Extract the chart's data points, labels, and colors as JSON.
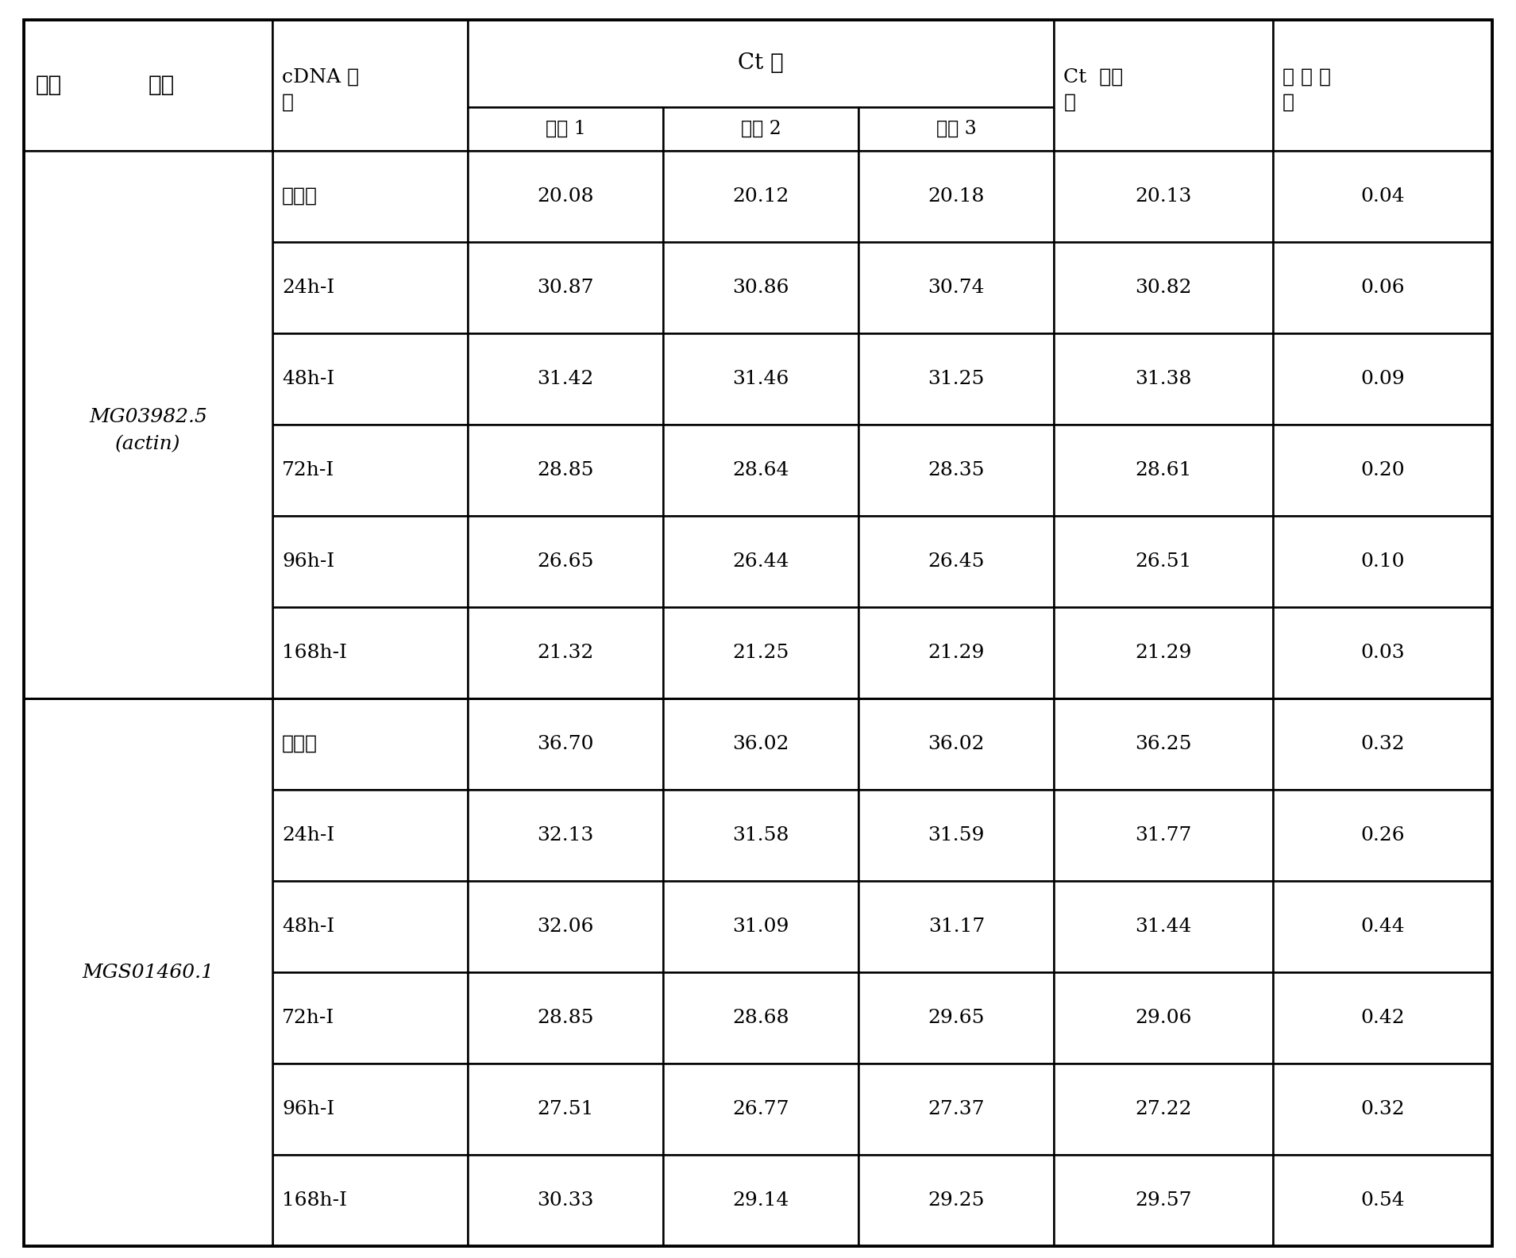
{
  "col_headers_row1": [
    "基因",
    "cDNA 样\n品",
    "Ct 值",
    "",
    "",
    "Ct  平均\n值",
    "标 准 偏\n差"
  ],
  "col_headers_row2": [
    "",
    "",
    "重复 1",
    "重复 2",
    "重复 3",
    "",
    ""
  ],
  "gene1_label": "MG03982.5\n\n(actin)",
  "gene2_label": "MGS01460.1",
  "rows": [
    [
      "菌丝体",
      "20.08",
      "20.12",
      "20.18",
      "20.13",
      "0.04"
    ],
    [
      "24h-I",
      "30.87",
      "30.86",
      "30.74",
      "30.82",
      "0.06"
    ],
    [
      "48h-I",
      "31.42",
      "31.46",
      "31.25",
      "31.38",
      "0.09"
    ],
    [
      "72h-I",
      "28.85",
      "28.64",
      "28.35",
      "28.61",
      "0.20"
    ],
    [
      "96h-I",
      "26.65",
      "26.44",
      "26.45",
      "26.51",
      "0.10"
    ],
    [
      "168h-I",
      "21.32",
      "21.25",
      "21.29",
      "21.29",
      "0.03"
    ],
    [
      "菌丝体",
      "36.70",
      "36.02",
      "36.02",
      "36.25",
      "0.32"
    ],
    [
      "24h-I",
      "32.13",
      "31.58",
      "31.59",
      "31.77",
      "0.26"
    ],
    [
      "48h-I",
      "32.06",
      "31.09",
      "31.17",
      "31.44",
      "0.44"
    ],
    [
      "72h-I",
      "28.85",
      "28.68",
      "29.65",
      "29.06",
      "0.42"
    ],
    [
      "96h-I",
      "27.51",
      "26.77",
      "27.37",
      "27.22",
      "0.32"
    ],
    [
      "168h-I",
      "30.33",
      "29.14",
      "29.25",
      "29.57",
      "0.54"
    ]
  ],
  "bg_color": "#ffffff",
  "line_color": "#000000",
  "text_color": "#000000",
  "font_size": 18,
  "header_font_size": 18
}
